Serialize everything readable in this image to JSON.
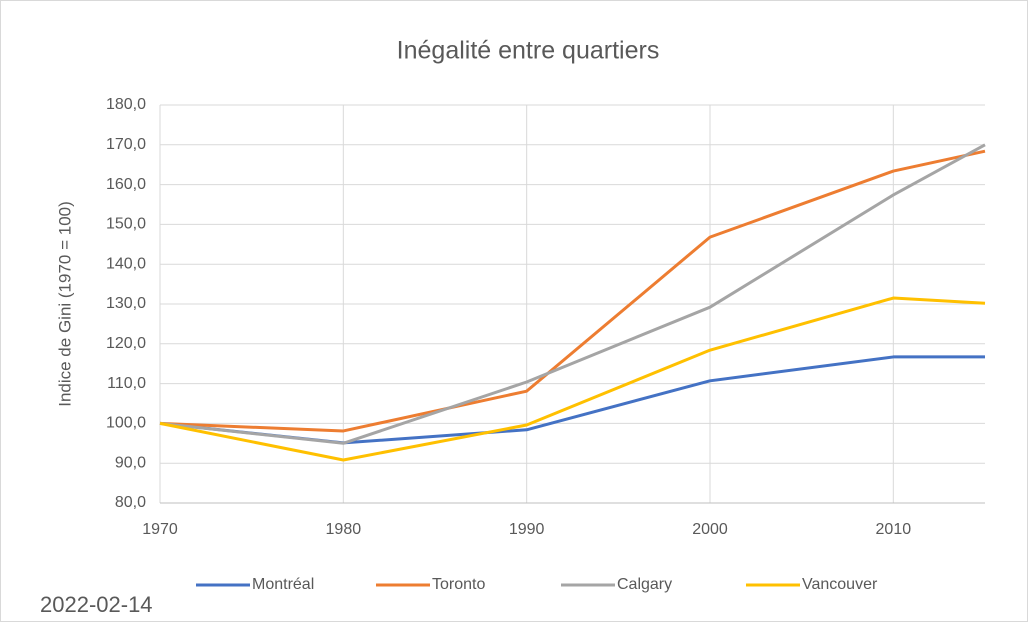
{
  "chart_data": {
    "type": "line",
    "title": "Inégalité entre quartiers",
    "y_label": "Indice de Gini (1970 = 100)",
    "annotation": "2022-02-14",
    "x": [
      1970,
      1980,
      1990,
      2000,
      2010,
      2015
    ],
    "xlim": [
      1970,
      2015
    ],
    "xticks": [
      1970,
      1980,
      1990,
      2000,
      2010
    ],
    "ylim": [
      80,
      180
    ],
    "yticks": [
      {
        "value": 80,
        "label": "80,0"
      },
      {
        "value": 90,
        "label": "90,0"
      },
      {
        "value": 100,
        "label": "100,0"
      },
      {
        "value": 110,
        "label": "110,0"
      },
      {
        "value": 120,
        "label": "120,0"
      },
      {
        "value": 130,
        "label": "130,0"
      },
      {
        "value": 140,
        "label": "140,0"
      },
      {
        "value": 150,
        "label": "150,0"
      },
      {
        "value": 160,
        "label": "160,0"
      },
      {
        "value": 170,
        "label": "170,0"
      },
      {
        "value": 180,
        "label": "180,0"
      }
    ],
    "grid": true,
    "legend": "bottom",
    "series": [
      {
        "name": "Montréal",
        "color": "#4472c4",
        "values": [
          100,
          95.1,
          98.4,
          110.7,
          116.7,
          116.7
        ]
      },
      {
        "name": "Toronto",
        "color": "#ed7d31",
        "values": [
          100,
          98.1,
          108.1,
          146.8,
          163.4,
          168.4
        ]
      },
      {
        "name": "Calgary",
        "color": "#a5a5a5",
        "values": [
          100,
          95.0,
          110.4,
          129.2,
          157.4,
          170.0
        ]
      },
      {
        "name": "Vancouver",
        "color": "#ffc000",
        "values": [
          100,
          90.8,
          99.6,
          118.4,
          131.5,
          130.2
        ]
      }
    ]
  }
}
